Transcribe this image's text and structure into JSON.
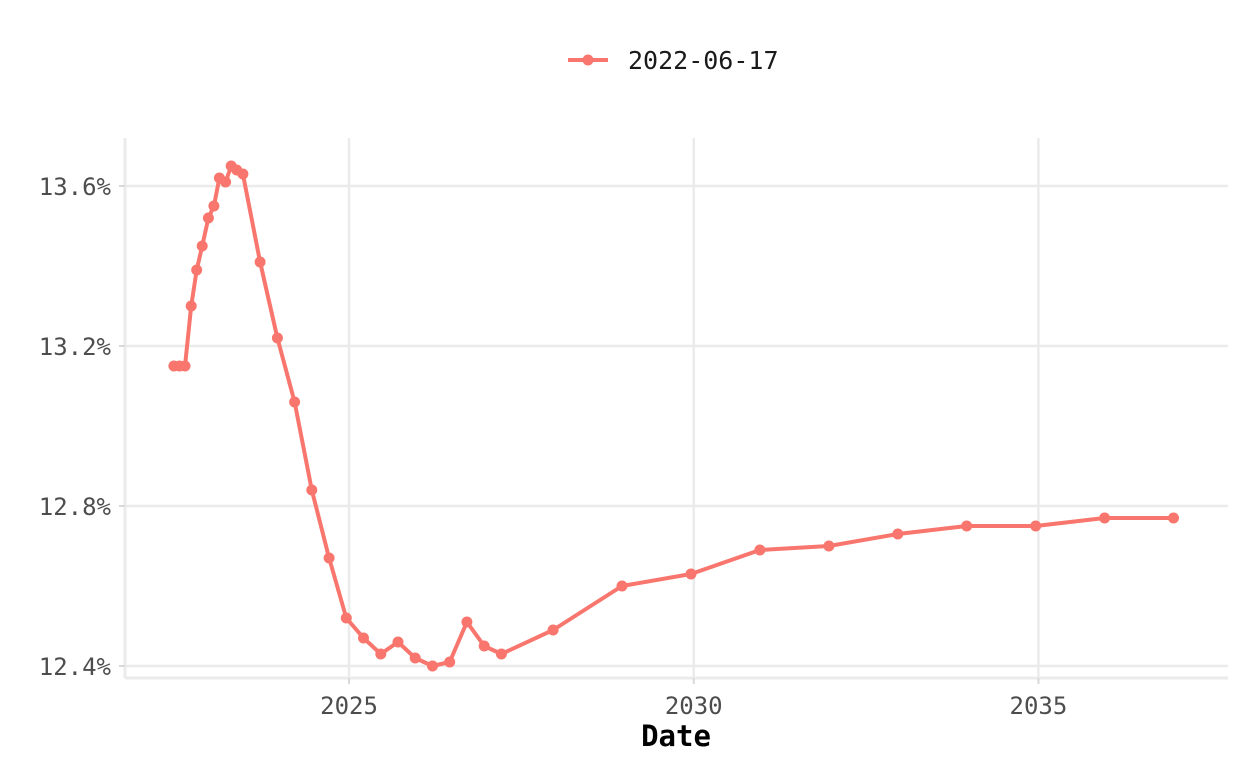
{
  "chart_data": {
    "type": "line",
    "title": "",
    "xlabel": "Date",
    "ylabel": "",
    "x_unit": "year",
    "xlim": [
      2021.75,
      2037.75
    ],
    "ylim": [
      12.37,
      13.72
    ],
    "x_ticks": [
      2025,
      2030,
      2035
    ],
    "x_tick_labels": [
      "2025",
      "2030",
      "2035"
    ],
    "y_ticks": [
      12.4,
      12.8,
      13.2,
      13.6
    ],
    "y_tick_labels": [
      "12.4%",
      "12.8%",
      "13.2%",
      "13.6%"
    ],
    "grid": true,
    "legend_position": "top",
    "series": [
      {
        "name": "2022-06-17",
        "color": "#F8766D",
        "x": [
          2022.46,
          2022.54,
          2022.62,
          2022.71,
          2022.79,
          2022.87,
          2022.96,
          2023.04,
          2023.12,
          2023.21,
          2023.29,
          2023.37,
          2023.46,
          2023.71,
          2023.96,
          2024.21,
          2024.46,
          2024.71,
          2024.96,
          2025.21,
          2025.46,
          2025.71,
          2025.96,
          2026.21,
          2026.46,
          2026.71,
          2026.96,
          2027.21,
          2027.96,
          2028.96,
          2029.96,
          2030.96,
          2031.96,
          2032.96,
          2033.96,
          2034.96,
          2035.96,
          2036.96
        ],
        "y": [
          13.15,
          13.15,
          13.15,
          13.3,
          13.39,
          13.45,
          13.52,
          13.55,
          13.62,
          13.61,
          13.65,
          13.64,
          13.63,
          13.41,
          13.22,
          13.06,
          12.84,
          12.67,
          12.52,
          12.47,
          12.43,
          12.46,
          12.42,
          12.4,
          12.41,
          12.51,
          12.45,
          12.43,
          12.49,
          12.6,
          12.63,
          12.69,
          12.7,
          12.73,
          12.75,
          12.75,
          12.77,
          12.77
        ]
      }
    ]
  }
}
